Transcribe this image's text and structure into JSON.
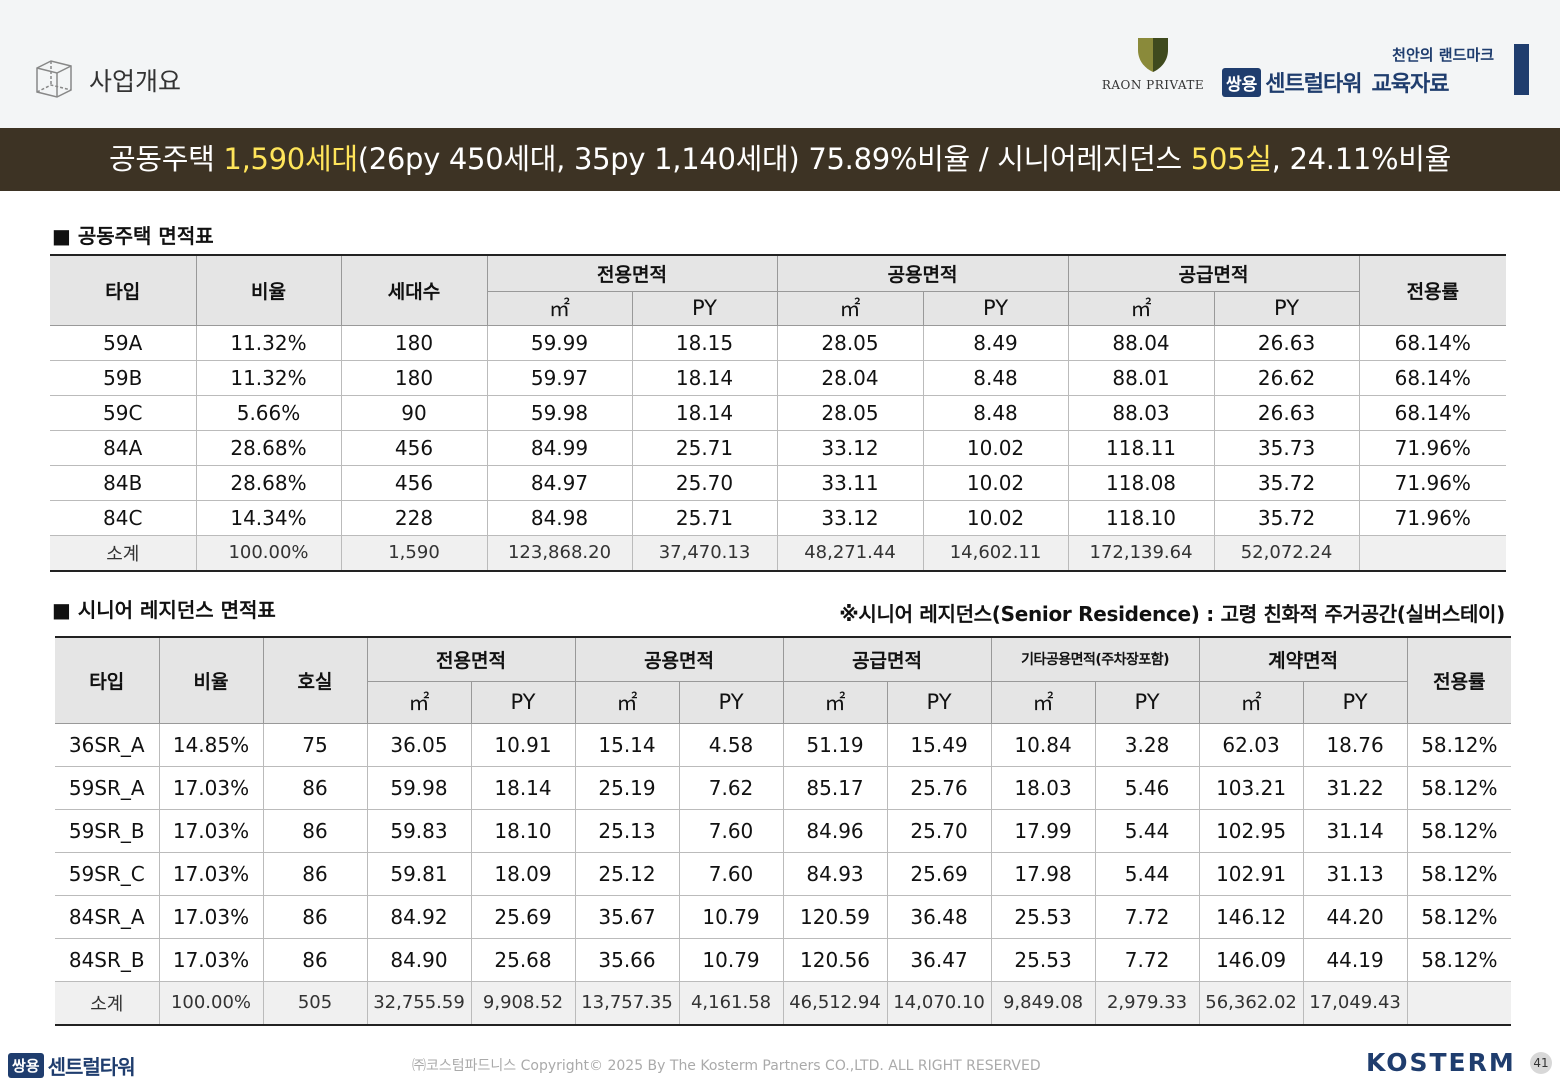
{
  "header": {
    "section_title": "사업개요",
    "raon_logo_text": "RAON PRIVATE",
    "tagline": "천안의 랜드마크",
    "brand_badge": "쌍용",
    "brand_name": "센트럴타워",
    "brand_suffix": "교육자료"
  },
  "banner": {
    "part1": "공동주택 ",
    "hl1": "1,590세대",
    "part2": "(26py 450세대, 35py 1,140세대) 75.89%비율 / 시니어레지던스 ",
    "hl2": "505실",
    "part3": ", 24.11%비율"
  },
  "table1": {
    "title": "■ 공동주택 면적표",
    "headers": {
      "type": "타입",
      "ratio": "비율",
      "units": "세대수",
      "exclusive": "전용면적",
      "common": "공용면적",
      "supply": "공급면적",
      "efficiency": "전용률",
      "m2": "㎡",
      "py": "PY"
    },
    "rows": [
      [
        "59A",
        "11.32%",
        "180",
        "59.99",
        "18.15",
        "28.05",
        "8.49",
        "88.04",
        "26.63",
        "68.14%"
      ],
      [
        "59B",
        "11.32%",
        "180",
        "59.97",
        "18.14",
        "28.04",
        "8.48",
        "88.01",
        "26.62",
        "68.14%"
      ],
      [
        "59C",
        "5.66%",
        "90",
        "59.98",
        "18.14",
        "28.05",
        "8.48",
        "88.03",
        "26.63",
        "68.14%"
      ],
      [
        "84A",
        "28.68%",
        "456",
        "84.99",
        "25.71",
        "33.12",
        "10.02",
        "118.11",
        "35.73",
        "71.96%"
      ],
      [
        "84B",
        "28.68%",
        "456",
        "84.97",
        "25.70",
        "33.11",
        "10.02",
        "118.08",
        "35.72",
        "71.96%"
      ],
      [
        "84C",
        "14.34%",
        "228",
        "84.98",
        "25.71",
        "33.12",
        "10.02",
        "118.10",
        "35.72",
        "71.96%"
      ]
    ],
    "subtotal": [
      "소계",
      "100.00%",
      "1,590",
      "123,868.20",
      "37,470.13",
      "48,271.44",
      "14,602.11",
      "172,139.64",
      "52,072.24",
      ""
    ]
  },
  "table2": {
    "title": "■ 시니어 레지던스 면적표",
    "note": "※시니어 레지던스(Senior Residence) : 고령 친화적 주거공간(실버스테이)",
    "headers": {
      "type": "타입",
      "ratio": "비율",
      "rooms": "호실",
      "exclusive": "전용면적",
      "common": "공용면적",
      "supply": "공급면적",
      "other_common": "기타공용면적(주차장포함)",
      "contract": "계약면적",
      "efficiency": "전용률",
      "m2": "㎡",
      "py": "PY"
    },
    "rows": [
      [
        "36SR_A",
        "14.85%",
        "75",
        "36.05",
        "10.91",
        "15.14",
        "4.58",
        "51.19",
        "15.49",
        "10.84",
        "3.28",
        "62.03",
        "18.76",
        "58.12%"
      ],
      [
        "59SR_A",
        "17.03%",
        "86",
        "59.98",
        "18.14",
        "25.19",
        "7.62",
        "85.17",
        "25.76",
        "18.03",
        "5.46",
        "103.21",
        "31.22",
        "58.12%"
      ],
      [
        "59SR_B",
        "17.03%",
        "86",
        "59.83",
        "18.10",
        "25.13",
        "7.60",
        "84.96",
        "25.70",
        "17.99",
        "5.44",
        "102.95",
        "31.14",
        "58.12%"
      ],
      [
        "59SR_C",
        "17.03%",
        "86",
        "59.81",
        "18.09",
        "25.12",
        "7.60",
        "84.93",
        "25.69",
        "17.98",
        "5.44",
        "102.91",
        "31.13",
        "58.12%"
      ],
      [
        "84SR_A",
        "17.03%",
        "86",
        "84.92",
        "25.69",
        "35.67",
        "10.79",
        "120.59",
        "36.48",
        "25.53",
        "7.72",
        "146.12",
        "44.20",
        "58.12%"
      ],
      [
        "84SR_B",
        "17.03%",
        "86",
        "84.90",
        "25.68",
        "35.66",
        "10.79",
        "120.56",
        "36.47",
        "25.53",
        "7.72",
        "146.09",
        "44.19",
        "58.12%"
      ]
    ],
    "subtotal": [
      "소계",
      "100.00%",
      "505",
      "32,755.59",
      "9,908.52",
      "13,757.35",
      "4,161.58",
      "46,512.94",
      "14,070.10",
      "9,849.08",
      "2,979.33",
      "56,362.02",
      "17,049.43",
      ""
    ]
  },
  "footer": {
    "brand_badge": "쌍용",
    "brand_name": "센트럴타워",
    "copyright": "㈜코스텀파드니스 Copyright© 2025 By The Kosterm Partners CO.,LTD. ALL RIGHT RESERVED",
    "kosterm": "KOSTERM",
    "page": "41"
  },
  "colors": {
    "navy": "#1f3d6e",
    "banner_bg": "#3d3324",
    "highlight": "#ffe55a",
    "header_cell": "#e5e5e5"
  },
  "icons": [
    "cube-outline-icon",
    "raon-shield-logo"
  ]
}
